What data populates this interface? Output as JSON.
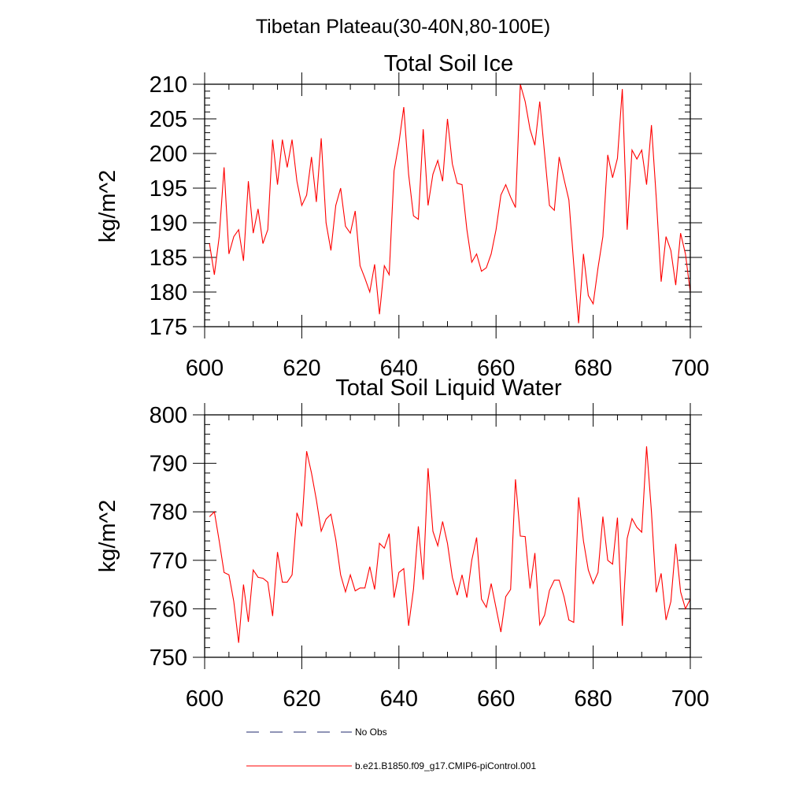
{
  "main_title": "Tibetan Plateau(30-40N,80-100E)",
  "legend": [
    {
      "label": "No Obs",
      "color": "#1f2a6e",
      "dash": true
    },
    {
      "label": "b.e21.B1850.f09_g17.CMIP6-piControl.001",
      "color": "#ff0000",
      "dash": false
    }
  ],
  "chart_data": [
    {
      "type": "line",
      "title": "Total Soil Ice",
      "xlabel": "",
      "ylabel": "kg/m^2",
      "xlim": [
        600,
        700
      ],
      "ylim": [
        175,
        210
      ],
      "xticks": [
        "600",
        "620",
        "640",
        "660",
        "680",
        "700"
      ],
      "yticks": [
        "175",
        "180",
        "185",
        "190",
        "195",
        "200",
        "205",
        "210"
      ],
      "grid": false,
      "series": [
        {
          "color": "#ff0000",
          "x": [
            601,
            602,
            603,
            604,
            605,
            606,
            607,
            608,
            609,
            610,
            611,
            612,
            613,
            614,
            615,
            616,
            617,
            618,
            619,
            620,
            621,
            622,
            623,
            624,
            625,
            626,
            627,
            628,
            629,
            630,
            631,
            632,
            633,
            634,
            635,
            636,
            637,
            638,
            639,
            640,
            641,
            642,
            643,
            644,
            645,
            646,
            647,
            648,
            649,
            650,
            651,
            652,
            653,
            654,
            655,
            656,
            657,
            658,
            659,
            660,
            661,
            662,
            663,
            664,
            665,
            666,
            667,
            668,
            669,
            670,
            671,
            672,
            673,
            674,
            675,
            676,
            677,
            678,
            679,
            680,
            681,
            682,
            683,
            684,
            685,
            686,
            687,
            688,
            689,
            690,
            691,
            692,
            693,
            694,
            695,
            696,
            697,
            698,
            699,
            700
          ],
          "values": [
            187,
            182.5,
            188,
            198,
            185.5,
            188,
            189,
            184.5,
            196,
            188.5,
            192,
            187,
            189,
            202,
            195.5,
            202,
            198,
            202,
            196,
            192.5,
            194,
            199.5,
            193,
            202.2,
            190,
            186,
            192.5,
            195,
            189.5,
            188.5,
            191.7,
            183.8,
            182,
            180,
            184,
            176.8,
            183.8,
            182.5,
            197.5,
            201.5,
            206.7,
            197,
            191,
            190.5,
            203.5,
            192.5,
            197,
            199,
            196,
            205,
            198.5,
            195.7,
            195.5,
            189,
            184.3,
            185.5,
            183,
            183.5,
            185.5,
            189,
            194,
            195.5,
            193.7,
            192.2,
            210,
            207.5,
            203.5,
            201.2,
            207.5,
            200,
            192.5,
            191.8,
            199.5,
            196.3,
            193.3,
            184,
            175.5,
            185.5,
            179.5,
            178.3,
            183.5,
            188,
            199.8,
            196.5,
            199.3,
            209.3,
            189,
            200.5,
            199.2,
            200.5,
            195.5,
            204.1,
            193.5,
            181.5,
            188,
            186,
            181,
            188.5,
            185.5,
            180
          ]
        }
      ]
    },
    {
      "type": "line",
      "title": "Total Soil Liquid Water",
      "xlabel": "",
      "ylabel": "kg/m^2",
      "xlim": [
        600,
        700
      ],
      "ylim": [
        750,
        800
      ],
      "xticks": [
        "600",
        "620",
        "640",
        "660",
        "680",
        "700"
      ],
      "yticks": [
        "750",
        "760",
        "770",
        "780",
        "790",
        "800"
      ],
      "grid": false,
      "series": [
        {
          "color": "#ff0000",
          "x": [
            601,
            602,
            603,
            604,
            605,
            606,
            607,
            608,
            609,
            610,
            611,
            612,
            613,
            614,
            615,
            616,
            617,
            618,
            619,
            620,
            621,
            622,
            623,
            624,
            625,
            626,
            627,
            628,
            629,
            630,
            631,
            632,
            633,
            634,
            635,
            636,
            637,
            638,
            639,
            640,
            641,
            642,
            643,
            644,
            645,
            646,
            647,
            648,
            649,
            650,
            651,
            652,
            653,
            654,
            655,
            656,
            657,
            658,
            659,
            660,
            661,
            662,
            663,
            664,
            665,
            666,
            667,
            668,
            669,
            670,
            671,
            672,
            673,
            674,
            675,
            676,
            677,
            678,
            679,
            680,
            681,
            682,
            683,
            684,
            685,
            686,
            687,
            688,
            689,
            690,
            691,
            692,
            693,
            694,
            695,
            696,
            697,
            698,
            699,
            700
          ],
          "values": [
            779,
            780,
            774,
            767.5,
            767,
            761.5,
            753,
            765,
            757.3,
            768,
            766.5,
            766.3,
            765.5,
            758.5,
            771.7,
            765.5,
            765.5,
            767,
            779.8,
            777,
            792.5,
            788,
            782.5,
            776,
            778.5,
            779.5,
            774.3,
            767,
            763.5,
            767,
            763.7,
            764.3,
            764.3,
            768.7,
            764,
            773.5,
            772.5,
            775.5,
            762.3,
            767.5,
            768.3,
            756.5,
            764,
            777,
            766,
            789,
            776,
            773,
            778,
            773.5,
            766.5,
            762.8,
            767,
            762.3,
            770,
            774.7,
            762,
            760.3,
            765.2,
            760.2,
            755.2,
            762.5,
            764,
            786.7,
            775,
            774.9,
            764.2,
            771.5,
            756.7,
            758.7,
            763.8,
            765.9,
            765.9,
            762.5,
            757.7,
            757.2,
            783,
            774,
            768,
            765.2,
            767.5,
            779,
            770,
            769.2,
            778.8,
            756.5,
            774.5,
            778.6,
            776.8,
            775.8,
            793.5,
            780,
            763.4,
            767.3,
            757.7,
            761.5,
            773.4,
            763.5,
            760,
            762
          ]
        }
      ]
    }
  ]
}
